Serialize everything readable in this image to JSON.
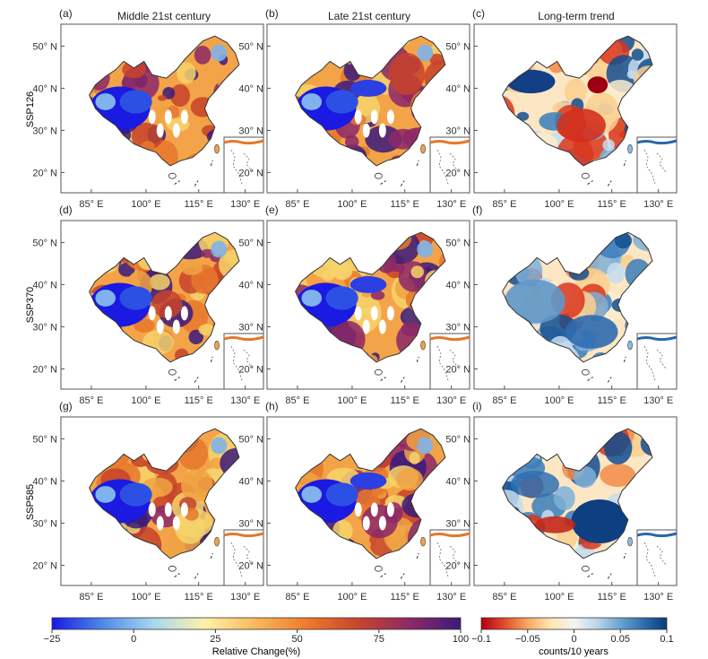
{
  "columns": {
    "middle": "Middle 21st century",
    "late": "Late 21st century",
    "trend": "Long-term trend"
  },
  "rows": [
    "SSP126",
    "SSP370",
    "SSP585"
  ],
  "panel_letters": [
    "(a)",
    "(b)",
    "(c)",
    "(d)",
    "(e)",
    "(f)",
    "(g)",
    "(h)",
    "(i)"
  ],
  "lat_ticks": [
    "50° N",
    "40° N",
    "30° N",
    "20° N"
  ],
  "lon_ticks": [
    "85° E",
    "100° E",
    "115° E",
    "130° E"
  ],
  "colorbar_change": {
    "label": "Relative Change(%)",
    "ticks": [
      "−25",
      "0",
      "25",
      "50",
      "75",
      "100"
    ],
    "colors": [
      "#1919e6",
      "#4f8ae8",
      "#a8d8f0",
      "#fff2a8",
      "#f8b85a",
      "#ee7a2a",
      "#c9442c",
      "#8e2a66",
      "#3b1a7a"
    ]
  },
  "colorbar_trend": {
    "label": "counts/10 years",
    "ticks": [
      "−0.1",
      "−0.05",
      "0",
      "0.05",
      "0.1"
    ],
    "colors": [
      "#b3000e",
      "#e34a2c",
      "#f9a862",
      "#fde7b0",
      "#f4f4f4",
      "#bcd6ea",
      "#6aa3cf",
      "#2e6fb0",
      "#0b3a78"
    ]
  }
}
